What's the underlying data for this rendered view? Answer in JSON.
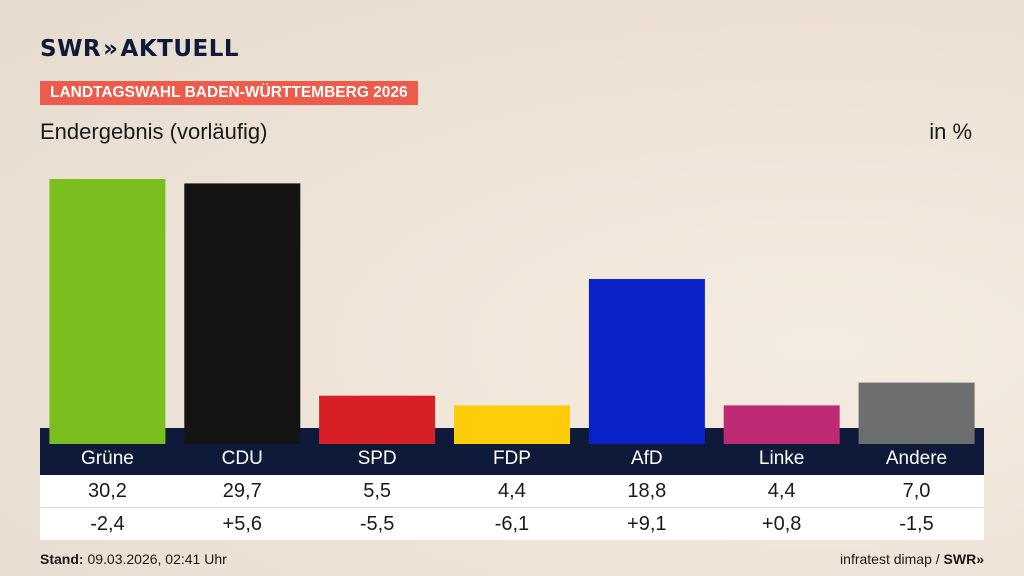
{
  "header": {
    "logo_text": "SWR",
    "logo_arrows": "»",
    "logo_sub": "AKTUELL",
    "banner": "LANDTAGSWAHL BADEN-WÜRTTEMBERG 2026",
    "subtitle": "Endergebnis (vorläufig)",
    "unit": "in %"
  },
  "footer": {
    "stand_label": "Stand:",
    "stand_value": "09.03.2026, 02:41 Uhr",
    "source": "infratest dimap /",
    "source_brand": "SWR»"
  },
  "chart_data": {
    "type": "bar",
    "categories": [
      "Grüne",
      "CDU",
      "SPD",
      "FDP",
      "AfD",
      "Linke",
      "Andere"
    ],
    "values": [
      30.2,
      29.7,
      5.5,
      4.4,
      18.8,
      4.4,
      7.0
    ],
    "value_labels": [
      "30,2",
      "29,7",
      "5,5",
      "4,4",
      "18,8",
      "4,4",
      "7,0"
    ],
    "diff_labels": [
      "-2,4",
      "+5,6",
      "-5,5",
      "-6,1",
      "+9,1",
      "+0,8",
      "-1,5"
    ],
    "colors": [
      "#7bbf1e",
      "#141414",
      "#d91f26",
      "#fdcd0a",
      "#0a23c9",
      "#be2b74",
      "#6d6e70"
    ],
    "ylim": [
      0,
      30.2
    ],
    "unit": "in %",
    "grid": false
  }
}
